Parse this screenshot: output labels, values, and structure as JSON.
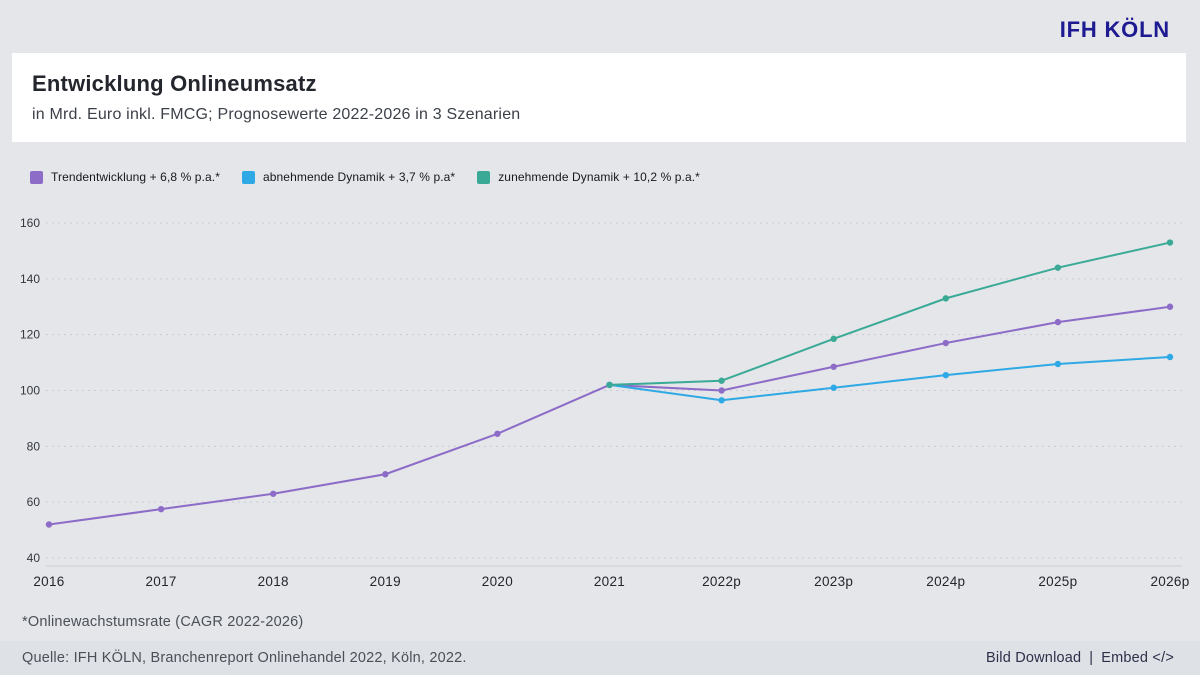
{
  "header": {
    "logo": "IFH KÖLN",
    "logo_color": "#1d1a92"
  },
  "title_card": {
    "title": "Entwicklung Onlineumsatz",
    "subtitle": "in Mrd. Euro inkl. FMCG; Prognosewerte 2022-2026 in 3 Szenarien"
  },
  "legend": [
    {
      "label": "Trendentwicklung + 6,8 % p.a.*",
      "color": "#8d6cc8"
    },
    {
      "label": "abnehmende Dynamik + 3,7 % p.a*",
      "color": "#2fa9e6"
    },
    {
      "label": "zunehmende Dynamik + 10,2 % p.a.*",
      "color": "#3aaa96"
    }
  ],
  "chart_data": {
    "type": "line",
    "title": "Entwicklung Onlineumsatz",
    "subtitle": "in Mrd. Euro inkl. FMCG; Prognosewerte 2022-2026 in 3 Szenarien",
    "unit": "Mrd. Euro",
    "categories": [
      "2016",
      "2017",
      "2018",
      "2019",
      "2020",
      "2021",
      "2022p",
      "2023p",
      "2024p",
      "2025p",
      "2026p"
    ],
    "series": [
      {
        "name": "Trendentwicklung + 6,8 % p.a.*",
        "color": "#8d6cc8",
        "values": [
          52,
          57.5,
          63,
          70,
          84.5,
          102,
          100,
          108.5,
          117,
          124.5,
          130
        ]
      },
      {
        "name": "abnehmende Dynamik + 3,7 % p.a*",
        "color": "#2fa9e6",
        "values": [
          null,
          null,
          null,
          null,
          null,
          102,
          96.5,
          101,
          105.5,
          109.5,
          112
        ]
      },
      {
        "name": "zunehmende Dynamik + 10,2 % p.a.*",
        "color": "#3aaa96",
        "values": [
          null,
          null,
          null,
          null,
          null,
          102,
          103.5,
          118.5,
          133,
          144,
          153
        ]
      }
    ],
    "ylim": [
      40,
      160
    ],
    "yticks": [
      40,
      60,
      80,
      100,
      120,
      140,
      160
    ],
    "grid": "dotted-horizontal",
    "legend_position": "top-left"
  },
  "footnotes": {
    "cagr_note": "*Onlinewachstumsrate (CAGR 2022-2026)",
    "source": "Quelle: IFH KÖLN, Branchenreport Onlinehandel 2022, Köln, 2022."
  },
  "footer_actions": {
    "bild_download": "Bild Download",
    "separator": "|",
    "embed": "Embed </>"
  }
}
